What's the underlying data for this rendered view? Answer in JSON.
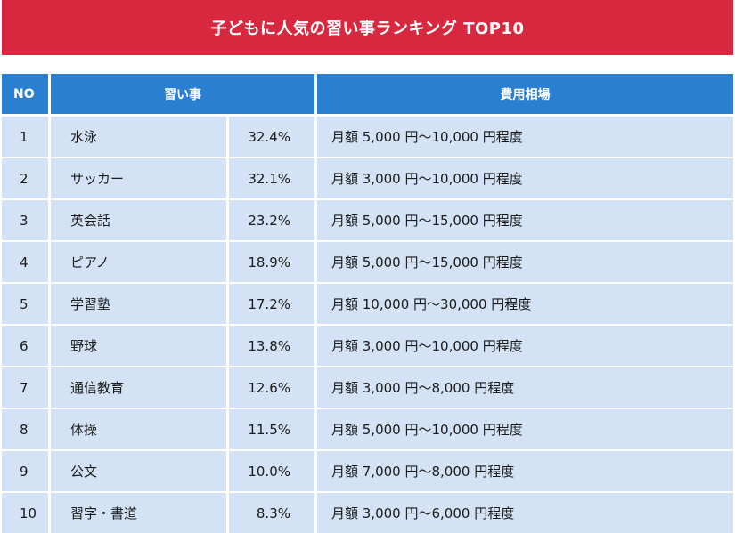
{
  "title": "子どもに人気の習い事ランキング TOP10",
  "headers": {
    "no": "NO",
    "lesson": "習い事",
    "cost": "費用相場"
  },
  "rows": [
    {
      "no": "1",
      "name": "水泳",
      "pct": "32.4%",
      "cost": "月額 5,000 円～10,000 円程度"
    },
    {
      "no": "2",
      "name": "サッカー",
      "pct": "32.1%",
      "cost": "月額 3,000 円～10,000 円程度"
    },
    {
      "no": "3",
      "name": "英会話",
      "pct": "23.2%",
      "cost": "月額 5,000 円～15,000 円程度"
    },
    {
      "no": "4",
      "name": "ピアノ",
      "pct": "18.9%",
      "cost": "月額 5,000 円～15,000 円程度"
    },
    {
      "no": "5",
      "name": "学習塾",
      "pct": "17.2%",
      "cost": "月額 10,000 円～30,000 円程度"
    },
    {
      "no": "6",
      "name": "野球",
      "pct": "13.8%",
      "cost": "月額 3,000 円～10,000 円程度"
    },
    {
      "no": "7",
      "name": "通信教育",
      "pct": "12.6%",
      "cost": "月額 3,000 円～8,000 円程度"
    },
    {
      "no": "8",
      "name": "体操",
      "pct": "11.5%",
      "cost": "月額 5,000 円～10,000 円程度"
    },
    {
      "no": "9",
      "name": "公文",
      "pct": "10.0%",
      "cost": "月額 7,000 円～8,000 円程度"
    },
    {
      "no": "10",
      "name": "習字・書道",
      "pct": "8.3%",
      "cost": "月額 3,000 円～6,000 円程度"
    }
  ],
  "colors": {
    "banner": "#d8283f",
    "header": "#2b7fd1",
    "row": "#d3e3f5"
  }
}
